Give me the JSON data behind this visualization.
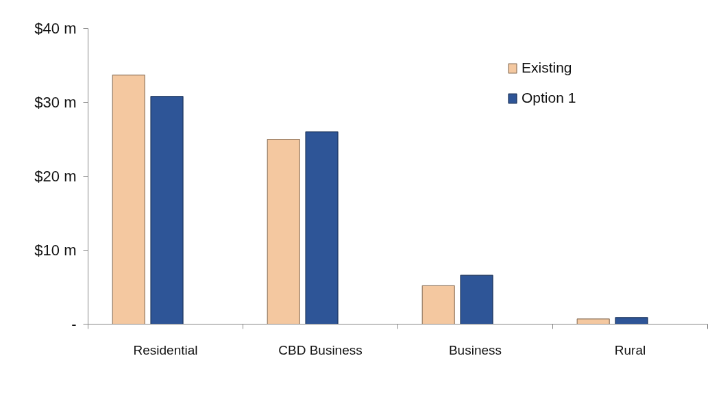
{
  "chart_data": {
    "type": "bar",
    "categories": [
      "Residential",
      "CBD Business",
      "Business",
      "Rural"
    ],
    "series": [
      {
        "name": "Existing",
        "color": "#f4c8a0",
        "values": [
          33.7,
          25.0,
          5.2,
          0.7
        ]
      },
      {
        "name": "Option 1",
        "color": "#2e5597",
        "values": [
          30.8,
          26.0,
          6.6,
          0.9
        ]
      }
    ],
    "ylim": [
      0,
      40
    ],
    "yticks": [
      {
        "value": 0,
        "label": "-"
      },
      {
        "value": 10,
        "label": "$10 m"
      },
      {
        "value": 20,
        "label": "$20 m"
      },
      {
        "value": 30,
        "label": "$30 m"
      },
      {
        "value": 40,
        "label": "$40 m"
      }
    ],
    "grid": false,
    "legend": "top right"
  }
}
